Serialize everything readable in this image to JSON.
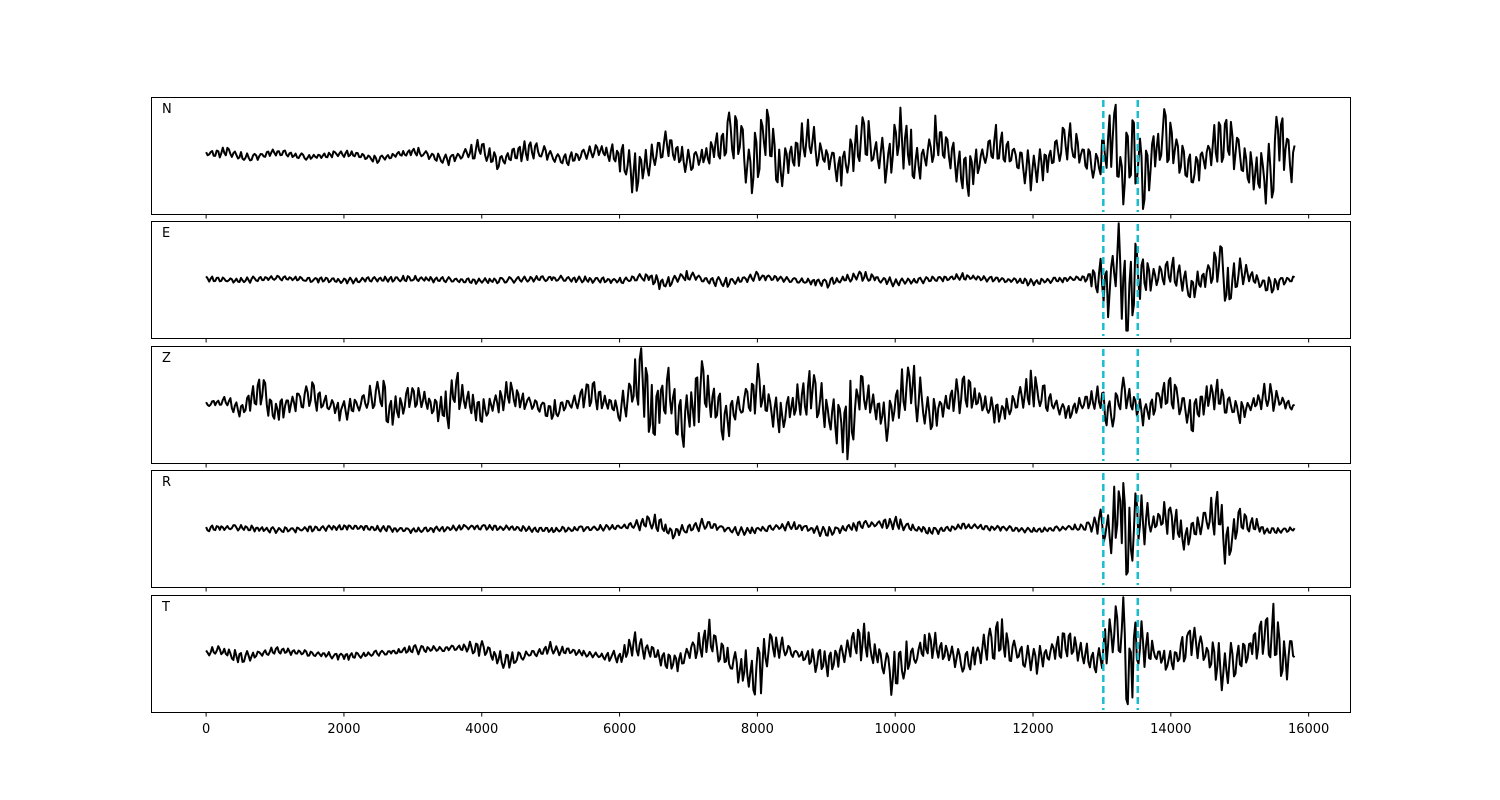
{
  "chart_data": {
    "type": "line",
    "title": "",
    "xlabel": "",
    "ylabel": "",
    "xlim": [
      -800,
      16600
    ],
    "x_ticks": [
      0,
      2000,
      4000,
      6000,
      8000,
      10000,
      12000,
      14000,
      16000
    ],
    "x_tick_labels": [
      "0",
      "2000",
      "4000",
      "6000",
      "8000",
      "10000",
      "12000",
      "14000",
      "16000"
    ],
    "sample_range": [
      0,
      15800
    ],
    "grid": false,
    "legend": "none",
    "shared_x": true,
    "vertical_markers": {
      "x": [
        13020,
        13520
      ],
      "color": "#17becf",
      "style": "dashed"
    },
    "trace_color": "#000000",
    "panels": [
      {
        "name": "N",
        "ylim": [
          -1,
          1
        ],
        "points": [
          [
            0,
            0.05
          ],
          [
            300,
            0.12
          ],
          [
            600,
            -0.1
          ],
          [
            1000,
            0.1
          ],
          [
            1500,
            -0.06
          ],
          [
            2000,
            0.08
          ],
          [
            2500,
            -0.1
          ],
          [
            3000,
            0.12
          ],
          [
            3500,
            -0.14
          ],
          [
            4000,
            0.22
          ],
          [
            4200,
            -0.2
          ],
          [
            4700,
            0.25
          ],
          [
            5200,
            -0.15
          ],
          [
            5700,
            0.18
          ],
          [
            6100,
            -0.12
          ],
          [
            6200,
            -0.55
          ],
          [
            6700,
            0.35
          ],
          [
            7000,
            -0.3
          ],
          [
            7500,
            0.4
          ],
          [
            7700,
            0.75
          ],
          [
            7900,
            -0.55
          ],
          [
            8150,
            0.9
          ],
          [
            8300,
            -0.45
          ],
          [
            8700,
            0.5
          ],
          [
            9200,
            -0.4
          ],
          [
            9500,
            0.6
          ],
          [
            9900,
            -0.3
          ],
          [
            10050,
            0.85
          ],
          [
            10300,
            -0.45
          ],
          [
            10600,
            0.55
          ],
          [
            11000,
            -0.6
          ],
          [
            11500,
            0.45
          ],
          [
            12000,
            -0.55
          ],
          [
            12500,
            0.5
          ],
          [
            12900,
            -0.4
          ],
          [
            13200,
            0.8
          ],
          [
            13300,
            -1.05
          ],
          [
            13450,
            0.75
          ],
          [
            13550,
            -0.95
          ],
          [
            13900,
            0.7
          ],
          [
            14300,
            -0.5
          ],
          [
            14800,
            0.65
          ],
          [
            15200,
            -0.55
          ],
          [
            15500,
            -0.8
          ],
          [
            15550,
            0.75
          ],
          [
            15800,
            -0.5
          ]
        ]
      },
      {
        "name": "E",
        "ylim": [
          -1,
          1
        ],
        "points": [
          [
            0,
            0.02
          ],
          [
            500,
            -0.03
          ],
          [
            1000,
            0.05
          ],
          [
            2000,
            -0.04
          ],
          [
            3000,
            0.03
          ],
          [
            4000,
            -0.05
          ],
          [
            5000,
            0.04
          ],
          [
            6000,
            -0.04
          ],
          [
            6400,
            0.1
          ],
          [
            6600,
            -0.15
          ],
          [
            7000,
            0.12
          ],
          [
            7500,
            -0.12
          ],
          [
            8000,
            0.1
          ],
          [
            9000,
            -0.12
          ],
          [
            9500,
            0.13
          ],
          [
            10000,
            -0.1
          ],
          [
            11000,
            0.09
          ],
          [
            12000,
            -0.09
          ],
          [
            12900,
            0.1
          ],
          [
            13100,
            -0.3
          ],
          [
            13250,
            0.95
          ],
          [
            13350,
            -1.0
          ],
          [
            13500,
            0.3
          ],
          [
            13700,
            0.0
          ],
          [
            14000,
            0.35
          ],
          [
            14300,
            -0.3
          ],
          [
            14600,
            0.3
          ],
          [
            14750,
            0.55
          ],
          [
            14800,
            -0.5
          ],
          [
            15000,
            0.25
          ],
          [
            15400,
            -0.2
          ],
          [
            15800,
            0.05
          ]
        ]
      },
      {
        "name": "Z",
        "ylim": [
          -1,
          1
        ],
        "points": [
          [
            0,
            0.0
          ],
          [
            300,
            0.1
          ],
          [
            500,
            -0.2
          ],
          [
            800,
            0.45
          ],
          [
            1000,
            -0.3
          ],
          [
            1500,
            0.35
          ],
          [
            2000,
            -0.25
          ],
          [
            2600,
            0.45
          ],
          [
            2650,
            -0.4
          ],
          [
            3000,
            0.3
          ],
          [
            3500,
            -0.25
          ],
          [
            3600,
            0.5
          ],
          [
            4000,
            -0.3
          ],
          [
            4400,
            0.35
          ],
          [
            5000,
            -0.25
          ],
          [
            5600,
            0.35
          ],
          [
            6000,
            -0.2
          ],
          [
            6350,
            0.9
          ],
          [
            6450,
            -0.55
          ],
          [
            6700,
            0.55
          ],
          [
            6900,
            -0.7
          ],
          [
            7200,
            0.7
          ],
          [
            7500,
            -0.55
          ],
          [
            8000,
            0.55
          ],
          [
            8300,
            -0.45
          ],
          [
            8800,
            0.6
          ],
          [
            9000,
            -0.35
          ],
          [
            9300,
            -0.85
          ],
          [
            9500,
            0.4
          ],
          [
            9900,
            -0.5
          ],
          [
            10200,
            0.7
          ],
          [
            10500,
            -0.4
          ],
          [
            11000,
            0.45
          ],
          [
            11500,
            -0.3
          ],
          [
            12000,
            0.45
          ],
          [
            12500,
            -0.25
          ],
          [
            12950,
            0.3
          ],
          [
            13100,
            -0.45
          ],
          [
            13300,
            0.4
          ],
          [
            13600,
            -0.3
          ],
          [
            14000,
            0.45
          ],
          [
            14300,
            -0.45
          ],
          [
            14600,
            0.4
          ],
          [
            15000,
            -0.25
          ],
          [
            15400,
            0.3
          ],
          [
            15800,
            -0.1
          ]
        ]
      },
      {
        "name": "R",
        "ylim": [
          -1,
          1
        ],
        "points": [
          [
            0,
            0.0
          ],
          [
            500,
            0.03
          ],
          [
            1000,
            -0.06
          ],
          [
            2000,
            0.05
          ],
          [
            3000,
            -0.05
          ],
          [
            4000,
            0.05
          ],
          [
            5000,
            -0.05
          ],
          [
            6000,
            0.05
          ],
          [
            6500,
            0.2
          ],
          [
            6800,
            -0.15
          ],
          [
            7200,
            0.12
          ],
          [
            7800,
            -0.1
          ],
          [
            8500,
            0.1
          ],
          [
            9000,
            -0.12
          ],
          [
            9500,
            0.1
          ],
          [
            10000,
            0.15
          ],
          [
            10500,
            -0.1
          ],
          [
            11000,
            0.08
          ],
          [
            12000,
            -0.06
          ],
          [
            12800,
            0.06
          ],
          [
            13000,
            0.2
          ],
          [
            13100,
            -0.3
          ],
          [
            13300,
            0.95
          ],
          [
            13380,
            -1.0
          ],
          [
            13500,
            0.35
          ],
          [
            13700,
            0.15
          ],
          [
            14000,
            0.4
          ],
          [
            14200,
            -0.3
          ],
          [
            14500,
            0.3
          ],
          [
            14700,
            0.5
          ],
          [
            14800,
            -0.6
          ],
          [
            15000,
            0.3
          ],
          [
            15400,
            -0.1
          ],
          [
            15800,
            0.0
          ]
        ]
      },
      {
        "name": "T",
        "ylim": [
          -1,
          1
        ],
        "points": [
          [
            0,
            0.0
          ],
          [
            200,
            0.12
          ],
          [
            500,
            -0.15
          ],
          [
            1000,
            0.1
          ],
          [
            2000,
            -0.1
          ],
          [
            3000,
            0.12
          ],
          [
            4000,
            0.2
          ],
          [
            4300,
            -0.25
          ],
          [
            5000,
            0.15
          ],
          [
            6000,
            -0.15
          ],
          [
            6200,
            0.3
          ],
          [
            6800,
            -0.3
          ],
          [
            7300,
            0.45
          ],
          [
            7700,
            -0.4
          ],
          [
            8000,
            -0.7
          ],
          [
            8200,
            0.3
          ],
          [
            9000,
            -0.35
          ],
          [
            9500,
            0.45
          ],
          [
            10000,
            -0.6
          ],
          [
            10500,
            0.35
          ],
          [
            11000,
            -0.3
          ],
          [
            11500,
            0.5
          ],
          [
            12000,
            -0.3
          ],
          [
            12500,
            0.4
          ],
          [
            12900,
            -0.35
          ],
          [
            13150,
            0.5
          ],
          [
            13300,
            0.95
          ],
          [
            13350,
            -0.95
          ],
          [
            13500,
            0.3
          ],
          [
            14000,
            -0.3
          ],
          [
            14300,
            0.45
          ],
          [
            14800,
            -0.55
          ],
          [
            15200,
            0.3
          ],
          [
            15500,
            0.75
          ],
          [
            15650,
            -0.55
          ],
          [
            15800,
            0.4
          ]
        ]
      }
    ]
  }
}
